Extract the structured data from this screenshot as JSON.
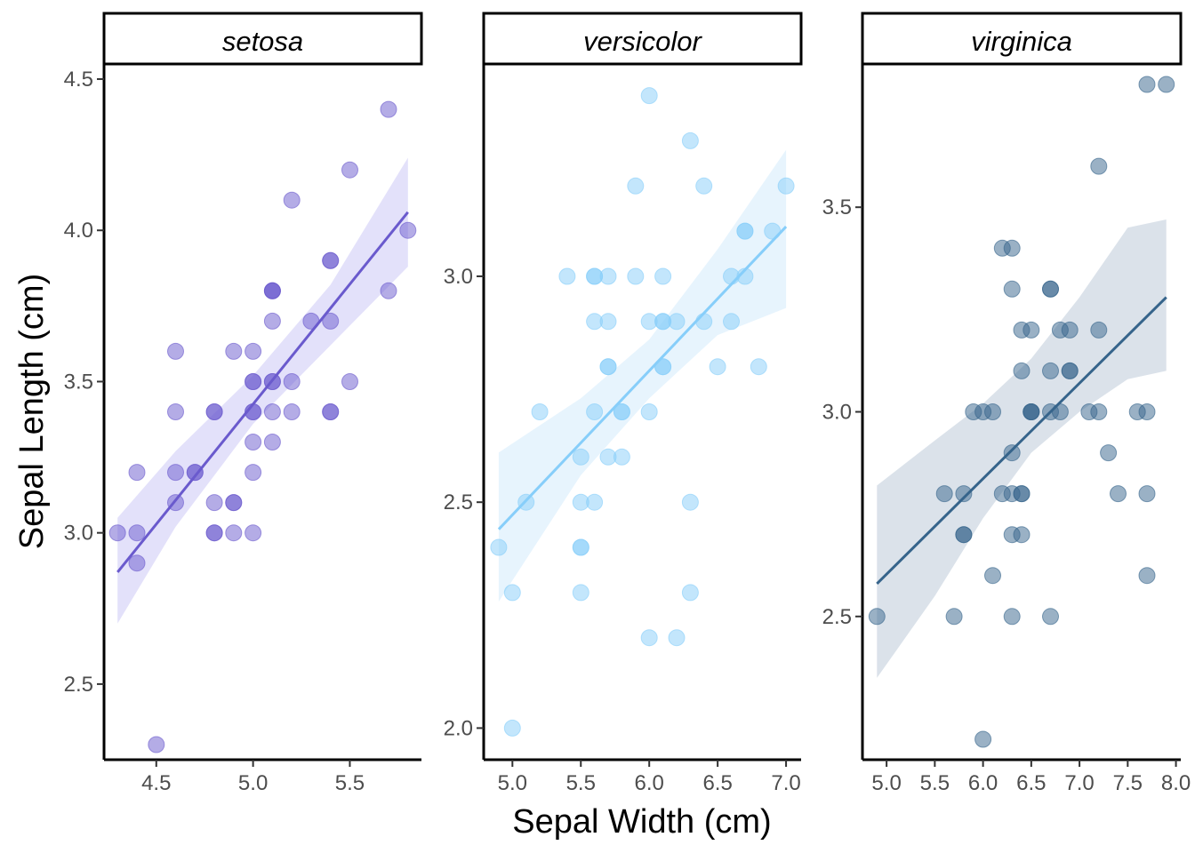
{
  "chart_data": {
    "type": "scatter",
    "layout": "faceted-3-columns",
    "xlabel": "Sepal Width (cm)",
    "ylabel": "Sepal Length (cm)",
    "grid": false,
    "legend": "none",
    "smoother": "linear regression with confidence band",
    "facets": [
      {
        "name": "setosa",
        "color": "#6a5acd",
        "band_color": "#e0defa",
        "xlim": [
          4.23,
          5.87
        ],
        "ylim": [
          2.25,
          4.55
        ],
        "x_ticks": [
          "4.5",
          "5.0",
          "5.5"
        ],
        "y_ticks": [
          "2.5",
          "3.0",
          "3.5",
          "4.0",
          "4.5"
        ],
        "regression": {
          "x": [
            4.3,
            5.8
          ],
          "y": [
            2.87,
            4.06
          ]
        },
        "band": {
          "x": [
            4.3,
            4.6,
            5.0,
            5.4,
            5.8
          ],
          "upper": [
            3.05,
            3.27,
            3.52,
            3.82,
            4.24
          ],
          "lower": [
            2.7,
            3.02,
            3.36,
            3.62,
            3.88
          ]
        },
        "points": [
          [
            5.7,
            4.4
          ],
          [
            5.5,
            4.2
          ],
          [
            5.2,
            4.1
          ],
          [
            5.8,
            4.0
          ],
          [
            5.4,
            3.9
          ],
          [
            5.4,
            3.9
          ],
          [
            5.7,
            3.8
          ],
          [
            5.1,
            3.8
          ],
          [
            5.1,
            3.8
          ],
          [
            5.1,
            3.8
          ],
          [
            5.1,
            3.7
          ],
          [
            5.3,
            3.7
          ],
          [
            5.4,
            3.7
          ],
          [
            4.6,
            3.6
          ],
          [
            4.9,
            3.6
          ],
          [
            5.0,
            3.6
          ],
          [
            5.0,
            3.5
          ],
          [
            5.0,
            3.5
          ],
          [
            5.1,
            3.5
          ],
          [
            5.1,
            3.5
          ],
          [
            5.2,
            3.5
          ],
          [
            5.5,
            3.5
          ],
          [
            4.6,
            3.4
          ],
          [
            4.8,
            3.4
          ],
          [
            4.8,
            3.4
          ],
          [
            5.0,
            3.4
          ],
          [
            5.0,
            3.4
          ],
          [
            5.1,
            3.4
          ],
          [
            5.2,
            3.4
          ],
          [
            5.4,
            3.4
          ],
          [
            5.4,
            3.4
          ],
          [
            5.0,
            3.3
          ],
          [
            5.1,
            3.3
          ],
          [
            4.4,
            3.2
          ],
          [
            4.6,
            3.2
          ],
          [
            4.7,
            3.2
          ],
          [
            4.7,
            3.2
          ],
          [
            5.0,
            3.2
          ],
          [
            4.6,
            3.1
          ],
          [
            4.8,
            3.1
          ],
          [
            4.9,
            3.1
          ],
          [
            4.9,
            3.1
          ],
          [
            4.3,
            3.0
          ],
          [
            4.4,
            3.0
          ],
          [
            4.8,
            3.0
          ],
          [
            4.8,
            3.0
          ],
          [
            4.9,
            3.0
          ],
          [
            5.0,
            3.0
          ],
          [
            4.4,
            2.9
          ],
          [
            4.5,
            2.3
          ]
        ]
      },
      {
        "name": "versicolor",
        "color": "#87cefa",
        "band_color": "#e4f3fd",
        "xlim": [
          4.79,
          7.11
        ],
        "ylim": [
          1.93,
          3.47
        ],
        "x_ticks": [
          "5.0",
          "5.5",
          "6.0",
          "6.5",
          "7.0"
        ],
        "y_ticks": [
          "2.0",
          "2.5",
          "3.0"
        ],
        "regression": {
          "x": [
            4.9,
            7.0
          ],
          "y": [
            2.44,
            3.11
          ]
        },
        "band": {
          "x": [
            4.9,
            5.5,
            6.0,
            6.5,
            7.0
          ],
          "upper": [
            2.61,
            2.73,
            2.86,
            3.06,
            3.28
          ],
          "lower": [
            2.28,
            2.56,
            2.73,
            2.87,
            2.93
          ]
        },
        "points": [
          [
            6.0,
            3.4
          ],
          [
            6.3,
            3.3
          ],
          [
            5.9,
            3.2
          ],
          [
            6.4,
            3.2
          ],
          [
            7.0,
            3.2
          ],
          [
            6.7,
            3.1
          ],
          [
            6.7,
            3.1
          ],
          [
            6.9,
            3.1
          ],
          [
            5.4,
            3.0
          ],
          [
            5.6,
            3.0
          ],
          [
            5.6,
            3.0
          ],
          [
            5.7,
            3.0
          ],
          [
            5.9,
            3.0
          ],
          [
            6.1,
            3.0
          ],
          [
            6.6,
            3.0
          ],
          [
            6.7,
            3.0
          ],
          [
            5.6,
            2.9
          ],
          [
            5.7,
            2.9
          ],
          [
            6.0,
            2.9
          ],
          [
            6.1,
            2.9
          ],
          [
            6.1,
            2.9
          ],
          [
            6.2,
            2.9
          ],
          [
            6.4,
            2.9
          ],
          [
            6.6,
            2.9
          ],
          [
            5.7,
            2.8
          ],
          [
            5.7,
            2.8
          ],
          [
            6.1,
            2.8
          ],
          [
            6.1,
            2.8
          ],
          [
            6.5,
            2.8
          ],
          [
            6.8,
            2.8
          ],
          [
            5.2,
            2.7
          ],
          [
            5.6,
            2.7
          ],
          [
            5.8,
            2.7
          ],
          [
            5.8,
            2.7
          ],
          [
            6.0,
            2.7
          ],
          [
            5.5,
            2.6
          ],
          [
            5.7,
            2.6
          ],
          [
            5.8,
            2.6
          ],
          [
            5.1,
            2.5
          ],
          [
            5.5,
            2.5
          ],
          [
            5.6,
            2.5
          ],
          [
            6.3,
            2.5
          ],
          [
            4.9,
            2.4
          ],
          [
            5.5,
            2.4
          ],
          [
            5.5,
            2.4
          ],
          [
            5.0,
            2.3
          ],
          [
            5.5,
            2.3
          ],
          [
            6.3,
            2.3
          ],
          [
            6.0,
            2.2
          ],
          [
            6.2,
            2.2
          ],
          [
            5.0,
            2.0
          ]
        ]
      },
      {
        "name": "virginica",
        "color": "#36648b",
        "band_color": "#d7dfe8",
        "xlim": [
          4.75,
          8.05
        ],
        "ylim": [
          2.15,
          3.85
        ],
        "x_ticks": [
          "5.0",
          "5.5",
          "6.0",
          "6.5",
          "7.0",
          "7.5",
          "8.0"
        ],
        "y_ticks": [
          "2.5",
          "3.0",
          "3.5"
        ],
        "regression": {
          "x": [
            4.9,
            7.9
          ],
          "y": [
            2.58,
            3.28
          ]
        },
        "band": {
          "x": [
            4.9,
            5.5,
            6.0,
            6.5,
            7.0,
            7.5,
            7.9
          ],
          "upper": [
            2.82,
            2.93,
            3.02,
            3.13,
            3.28,
            3.45,
            3.47
          ],
          "lower": [
            2.35,
            2.55,
            2.74,
            2.9,
            3.0,
            3.08,
            3.1
          ]
        },
        "points": [
          [
            7.7,
            3.8
          ],
          [
            7.9,
            3.8
          ],
          [
            7.2,
            3.6
          ],
          [
            6.2,
            3.4
          ],
          [
            6.3,
            3.4
          ],
          [
            6.3,
            3.3
          ],
          [
            6.7,
            3.3
          ],
          [
            6.7,
            3.3
          ],
          [
            6.4,
            3.2
          ],
          [
            6.5,
            3.2
          ],
          [
            6.8,
            3.2
          ],
          [
            6.9,
            3.2
          ],
          [
            7.2,
            3.2
          ],
          [
            6.4,
            3.1
          ],
          [
            6.7,
            3.1
          ],
          [
            6.9,
            3.1
          ],
          [
            6.9,
            3.1
          ],
          [
            5.9,
            3.0
          ],
          [
            6.0,
            3.0
          ],
          [
            6.1,
            3.0
          ],
          [
            6.5,
            3.0
          ],
          [
            6.5,
            3.0
          ],
          [
            6.5,
            3.0
          ],
          [
            6.7,
            3.0
          ],
          [
            6.8,
            3.0
          ],
          [
            7.1,
            3.0
          ],
          [
            7.2,
            3.0
          ],
          [
            7.6,
            3.0
          ],
          [
            7.7,
            3.0
          ],
          [
            6.3,
            2.9
          ],
          [
            7.3,
            2.9
          ],
          [
            5.6,
            2.8
          ],
          [
            5.8,
            2.8
          ],
          [
            6.2,
            2.8
          ],
          [
            6.3,
            2.8
          ],
          [
            6.4,
            2.8
          ],
          [
            6.4,
            2.8
          ],
          [
            7.4,
            2.8
          ],
          [
            7.7,
            2.8
          ],
          [
            5.8,
            2.7
          ],
          [
            5.8,
            2.7
          ],
          [
            6.3,
            2.7
          ],
          [
            6.4,
            2.7
          ],
          [
            6.1,
            2.6
          ],
          [
            7.7,
            2.6
          ],
          [
            4.9,
            2.5
          ],
          [
            5.7,
            2.5
          ],
          [
            6.3,
            2.5
          ],
          [
            6.7,
            2.5
          ],
          [
            6.0,
            2.2
          ]
        ]
      }
    ]
  }
}
